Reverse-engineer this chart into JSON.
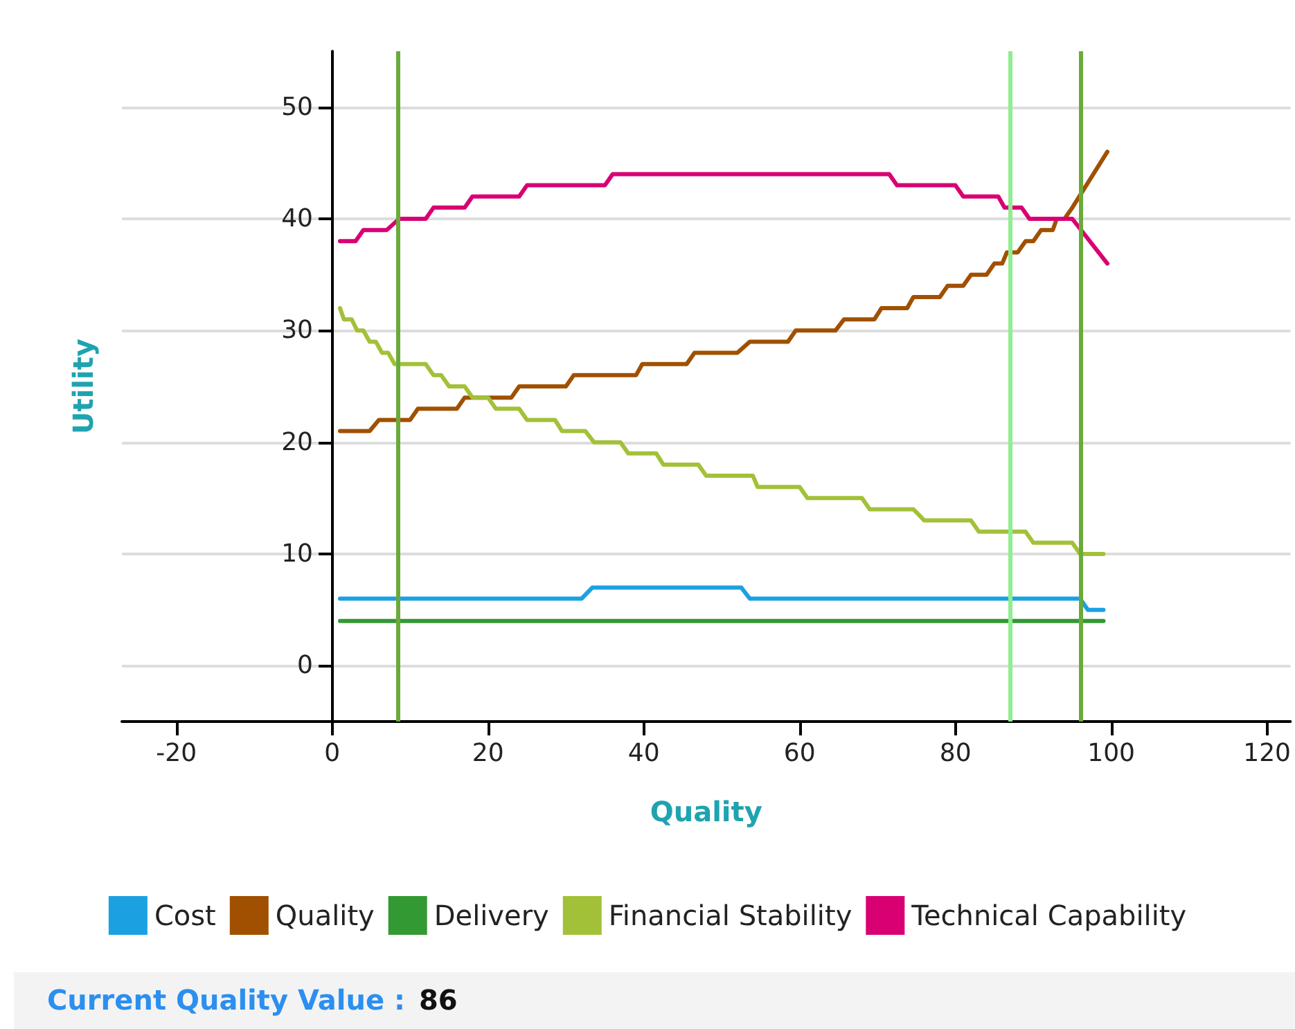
{
  "chart_data": {
    "type": "line",
    "xlabel": "Quality",
    "ylabel": "Utility",
    "xlim": [
      -27,
      123
    ],
    "xticks": [
      -20,
      0,
      20,
      40,
      60,
      80,
      100,
      120
    ],
    "ylim": [
      -5,
      55
    ],
    "yticks": [
      0,
      10,
      20,
      30,
      40,
      50
    ],
    "grid": "y",
    "legend": "bottom",
    "marker": "none",
    "line_style": "solid",
    "series": [
      {
        "name": "Cost",
        "color": "#1ba1e2",
        "x": [
          1,
          32,
          33.4,
          52.5,
          53.6,
          96,
          97,
          99
        ],
        "values": [
          6,
          6,
          7,
          7,
          6,
          6,
          5,
          5
        ]
      },
      {
        "name": "Quality",
        "color": "#a05000",
        "x": [
          1,
          4.8,
          6,
          10,
          11,
          16,
          17,
          23,
          24,
          30,
          31,
          39,
          39.8,
          45.5,
          46.5,
          52,
          53.6,
          58.5,
          59.5,
          64.6,
          65.7,
          69.6,
          70.5,
          73.8,
          74.6,
          78,
          79,
          81,
          82,
          84,
          85,
          86,
          86.6,
          88,
          89,
          90,
          91,
          92.5,
          93,
          94,
          95,
          99.5
        ],
        "values": [
          21,
          21,
          22,
          22,
          23,
          23,
          24,
          24,
          25,
          25,
          26,
          26,
          27,
          27,
          28,
          28,
          29,
          29,
          30,
          30,
          31,
          31,
          32,
          32,
          33,
          33,
          34,
          34,
          35,
          35,
          36,
          36,
          37,
          37,
          38,
          38,
          39,
          39,
          40,
          40,
          41,
          46
        ]
      },
      {
        "name": "Delivery",
        "color": "#339933",
        "x": [
          1,
          99
        ],
        "values": [
          4,
          4
        ]
      },
      {
        "name": "Financial Stability",
        "color": "#a2c139",
        "x": [
          1,
          1.5,
          2.5,
          3.2,
          4,
          4.8,
          5.6,
          6.4,
          7.2,
          8,
          9,
          10,
          12,
          13,
          14,
          15,
          17,
          18,
          20,
          21,
          24,
          25,
          28.6,
          29.5,
          32.5,
          33.6,
          37,
          38,
          41.6,
          42.5,
          47,
          48,
          54,
          54.6,
          60,
          61,
          68,
          69,
          74.6,
          76,
          82,
          83,
          89,
          90,
          95,
          96,
          99
        ],
        "values": [
          32,
          31,
          31,
          30,
          30,
          29,
          29,
          28,
          28,
          27,
          27,
          27,
          27,
          26,
          26,
          25,
          25,
          24,
          24,
          23,
          23,
          22,
          22,
          21,
          21,
          20,
          20,
          19,
          19,
          18,
          18,
          17,
          17,
          16,
          16,
          15,
          15,
          14,
          14,
          13,
          13,
          12,
          12,
          11,
          11,
          10,
          10
        ]
      },
      {
        "name": "Technical Capability",
        "color": "#d80073",
        "x": [
          1,
          3,
          4,
          7,
          8.6,
          12,
          13,
          17,
          18,
          24,
          25,
          35,
          36,
          71.5,
          72.5,
          80,
          81,
          85.5,
          86.3,
          88.5,
          89.5,
          95,
          99.5
        ],
        "values": [
          38,
          38,
          39,
          39,
          40,
          40,
          41,
          41,
          42,
          42,
          43,
          43,
          44,
          44,
          43,
          43,
          42,
          42,
          41,
          41,
          40,
          40,
          36
        ]
      }
    ],
    "ref_lines": [
      {
        "axis": "x",
        "value": 8.5,
        "color": "#6aaa3a"
      },
      {
        "axis": "x",
        "value": 87,
        "color": "#90ee90"
      },
      {
        "axis": "x",
        "value": 96,
        "color": "#6aaa3a"
      }
    ],
    "annotations": [
      "Current Quality Value :",
      "86"
    ]
  }
}
